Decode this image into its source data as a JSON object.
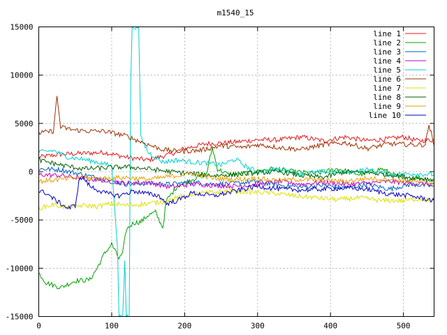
{
  "chart_data": {
    "type": "line",
    "title": "m1540_15",
    "xlim": [
      0,
      542
    ],
    "ylim": [
      -15000,
      15000
    ],
    "x_ticks": [
      0,
      100,
      200,
      300,
      400,
      500
    ],
    "y_ticks": [
      -15000,
      -10000,
      -5000,
      0,
      5000,
      10000,
      15000
    ],
    "grid": true,
    "legend_position": "top-right",
    "series": [
      {
        "name": "line 1",
        "color": "#e41a1c",
        "points": [
          [
            0,
            1500
          ],
          [
            30,
            1800
          ],
          [
            60,
            1900
          ],
          [
            90,
            2000
          ],
          [
            120,
            1500
          ],
          [
            150,
            1200
          ],
          [
            180,
            1800
          ],
          [
            200,
            2400
          ],
          [
            230,
            2900
          ],
          [
            260,
            3000
          ],
          [
            300,
            3300
          ],
          [
            330,
            3300
          ],
          [
            360,
            3600
          ],
          [
            390,
            3200
          ],
          [
            420,
            3600
          ],
          [
            450,
            3200
          ],
          [
            480,
            3400
          ],
          [
            500,
            3600
          ],
          [
            520,
            3200
          ],
          [
            542,
            3300
          ]
        ]
      },
      {
        "name": "line 2",
        "color": "#00a000",
        "points": [
          [
            0,
            -10500
          ],
          [
            10,
            -11500
          ],
          [
            30,
            -12000
          ],
          [
            50,
            -11300
          ],
          [
            70,
            -11200
          ],
          [
            80,
            -10000
          ],
          [
            90,
            -8500
          ],
          [
            100,
            -7500
          ],
          [
            110,
            -9000
          ],
          [
            115,
            -8500
          ],
          [
            120,
            -6000
          ],
          [
            130,
            -5300
          ],
          [
            140,
            -5200
          ],
          [
            150,
            -4500
          ],
          [
            160,
            -4200
          ],
          [
            170,
            -5800
          ],
          [
            175,
            -3000
          ],
          [
            190,
            -1500
          ],
          [
            210,
            -800
          ],
          [
            230,
            -200
          ],
          [
            238,
            2500
          ],
          [
            245,
            300
          ],
          [
            260,
            -300
          ],
          [
            290,
            -100
          ],
          [
            320,
            300
          ],
          [
            350,
            0
          ],
          [
            380,
            -200
          ],
          [
            410,
            300
          ],
          [
            440,
            -300
          ],
          [
            470,
            300
          ],
          [
            500,
            -800
          ],
          [
            520,
            -600
          ],
          [
            542,
            -1000
          ]
        ]
      },
      {
        "name": "line 3",
        "color": "#0060c0",
        "points": [
          [
            0,
            300
          ],
          [
            30,
            200
          ],
          [
            60,
            -300
          ],
          [
            90,
            -800
          ],
          [
            120,
            -1300
          ],
          [
            150,
            -1200
          ],
          [
            180,
            -1300
          ],
          [
            210,
            -1100
          ],
          [
            240,
            -1300
          ],
          [
            270,
            -1200
          ],
          [
            300,
            -1000
          ],
          [
            330,
            -1400
          ],
          [
            360,
            -1600
          ],
          [
            390,
            -1400
          ],
          [
            420,
            -1700
          ],
          [
            450,
            -1300
          ],
          [
            480,
            -1800
          ],
          [
            510,
            -1300
          ],
          [
            542,
            -1500
          ]
        ]
      },
      {
        "name": "line 4",
        "color": "#c000c0",
        "points": [
          [
            0,
            -300
          ],
          [
            30,
            -400
          ],
          [
            60,
            -700
          ],
          [
            90,
            -900
          ],
          [
            120,
            -1200
          ],
          [
            150,
            -1100
          ],
          [
            180,
            -1600
          ],
          [
            210,
            -1300
          ],
          [
            240,
            -1400
          ],
          [
            270,
            -1500
          ],
          [
            300,
            -1300
          ],
          [
            330,
            -1000
          ],
          [
            360,
            -1300
          ],
          [
            390,
            -1100
          ],
          [
            420,
            -1300
          ],
          [
            450,
            -1200
          ],
          [
            480,
            -1000
          ],
          [
            510,
            -1200
          ],
          [
            542,
            -1300
          ]
        ]
      },
      {
        "name": "line 5",
        "color": "#00d0d0",
        "points": [
          [
            0,
            2000
          ],
          [
            20,
            2200
          ],
          [
            40,
            1500
          ],
          [
            60,
            1300
          ],
          [
            80,
            1000
          ],
          [
            100,
            600
          ],
          [
            108,
            -8000
          ],
          [
            110,
            -15000
          ],
          [
            115,
            -15000
          ],
          [
            118,
            -9000
          ],
          [
            120,
            -15000
          ],
          [
            124,
            -15000
          ],
          [
            126,
            9000
          ],
          [
            128,
            15000
          ],
          [
            137,
            15000
          ],
          [
            140,
            3500
          ],
          [
            150,
            2000
          ],
          [
            170,
            1000
          ],
          [
            190,
            1200
          ],
          [
            210,
            1000
          ],
          [
            230,
            900
          ],
          [
            250,
            700
          ],
          [
            270,
            1300
          ],
          [
            285,
            500
          ],
          [
            300,
            0
          ],
          [
            330,
            300
          ],
          [
            360,
            -200
          ],
          [
            390,
            0
          ],
          [
            420,
            -100
          ],
          [
            450,
            200
          ],
          [
            480,
            -300
          ],
          [
            510,
            -200
          ],
          [
            542,
            -300
          ]
        ]
      },
      {
        "name": "line 6",
        "color": "#a03000",
        "points": [
          [
            0,
            4000
          ],
          [
            20,
            4200
          ],
          [
            25,
            7800
          ],
          [
            30,
            4600
          ],
          [
            50,
            4300
          ],
          [
            70,
            4200
          ],
          [
            90,
            4200
          ],
          [
            120,
            3700
          ],
          [
            150,
            2800
          ],
          [
            170,
            2300
          ],
          [
            190,
            2100
          ],
          [
            220,
            2200
          ],
          [
            250,
            2700
          ],
          [
            280,
            2500
          ],
          [
            300,
            2800
          ],
          [
            330,
            2500
          ],
          [
            360,
            2300
          ],
          [
            390,
            2800
          ],
          [
            420,
            3000
          ],
          [
            450,
            2400
          ],
          [
            480,
            2900
          ],
          [
            510,
            2800
          ],
          [
            530,
            2800
          ],
          [
            535,
            4900
          ],
          [
            542,
            2700
          ]
        ]
      },
      {
        "name": "line 7",
        "color": "#e0e000",
        "points": [
          [
            0,
            -3800
          ],
          [
            20,
            -3400
          ],
          [
            40,
            -3700
          ],
          [
            60,
            -3500
          ],
          [
            80,
            -3600
          ],
          [
            100,
            -3300
          ],
          [
            120,
            -3500
          ],
          [
            150,
            -3300
          ],
          [
            170,
            -3100
          ],
          [
            190,
            -2700
          ],
          [
            210,
            -2300
          ],
          [
            230,
            -2200
          ],
          [
            260,
            -2000
          ],
          [
            290,
            -2100
          ],
          [
            320,
            -2200
          ],
          [
            350,
            -2500
          ],
          [
            380,
            -2700
          ],
          [
            410,
            -2900
          ],
          [
            440,
            -2700
          ],
          [
            470,
            -3000
          ],
          [
            500,
            -3000
          ],
          [
            520,
            -2800
          ],
          [
            542,
            -3000
          ]
        ]
      },
      {
        "name": "line 8",
        "color": "#006000",
        "points": [
          [
            0,
            1200
          ],
          [
            30,
            700
          ],
          [
            60,
            300
          ],
          [
            90,
            400
          ],
          [
            120,
            500
          ],
          [
            150,
            300
          ],
          [
            180,
            0
          ],
          [
            210,
            -200
          ],
          [
            240,
            -400
          ],
          [
            270,
            -300
          ],
          [
            300,
            -100
          ],
          [
            330,
            0
          ],
          [
            360,
            -400
          ],
          [
            390,
            -600
          ],
          [
            420,
            0
          ],
          [
            450,
            -100
          ],
          [
            480,
            -300
          ],
          [
            510,
            -600
          ],
          [
            542,
            -800
          ]
        ]
      },
      {
        "name": "line 9",
        "color": "#e8a000",
        "points": [
          [
            0,
            -1000
          ],
          [
            30,
            -800
          ],
          [
            60,
            -600
          ],
          [
            90,
            -700
          ],
          [
            120,
            -600
          ],
          [
            150,
            -800
          ],
          [
            180,
            -500
          ],
          [
            210,
            -200
          ],
          [
            240,
            -700
          ],
          [
            270,
            -800
          ],
          [
            300,
            -700
          ],
          [
            330,
            -900
          ],
          [
            360,
            -800
          ],
          [
            390,
            -900
          ],
          [
            420,
            -1000
          ],
          [
            450,
            -700
          ],
          [
            480,
            -800
          ],
          [
            510,
            -1000
          ],
          [
            542,
            -1200
          ]
        ]
      },
      {
        "name": "line 10",
        "color": "#0000c0",
        "points": [
          [
            0,
            -2000
          ],
          [
            10,
            -2200
          ],
          [
            20,
            -2800
          ],
          [
            30,
            -3300
          ],
          [
            40,
            -3800
          ],
          [
            50,
            -3500
          ],
          [
            55,
            -1000
          ],
          [
            60,
            -500
          ],
          [
            70,
            -1500
          ],
          [
            90,
            -2200
          ],
          [
            110,
            -2500
          ],
          [
            130,
            -2000
          ],
          [
            150,
            -2300
          ],
          [
            165,
            -2500
          ],
          [
            175,
            -3300
          ],
          [
            190,
            -3000
          ],
          [
            210,
            -2200
          ],
          [
            240,
            -2500
          ],
          [
            270,
            -2000
          ],
          [
            300,
            -1500
          ],
          [
            330,
            -1800
          ],
          [
            360,
            -1900
          ],
          [
            390,
            -1800
          ],
          [
            420,
            -1700
          ],
          [
            450,
            -1800
          ],
          [
            480,
            -2300
          ],
          [
            510,
            -2500
          ],
          [
            542,
            -3000
          ]
        ]
      }
    ]
  }
}
